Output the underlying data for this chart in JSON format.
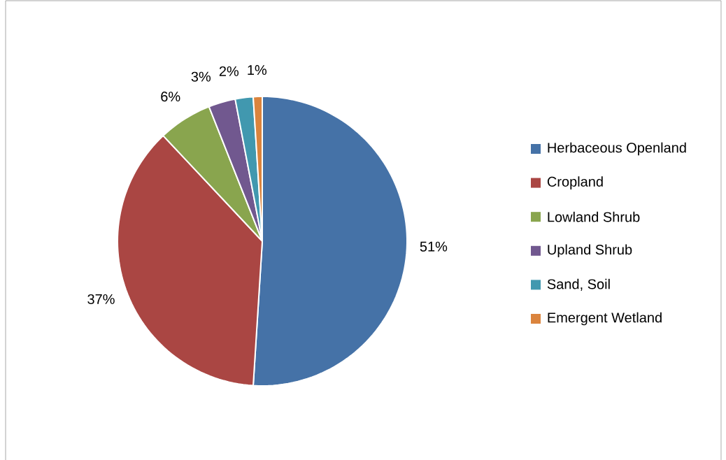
{
  "chart_data": {
    "type": "pie",
    "categories": [
      "Herbaceous Openland",
      "Cropland",
      "Lowland Shrub",
      "Upland Shrub",
      "Sand, Soil",
      "Emergent Wetland"
    ],
    "values": [
      51,
      37,
      6,
      3,
      2,
      1
    ],
    "colors": [
      "#4572a7",
      "#aa4643",
      "#89a54e",
      "#71588f",
      "#4198af",
      "#db843d"
    ],
    "value_labels": [
      "51%",
      "37%",
      "6%",
      "3%",
      "2%",
      "1%"
    ],
    "legend": "right"
  }
}
